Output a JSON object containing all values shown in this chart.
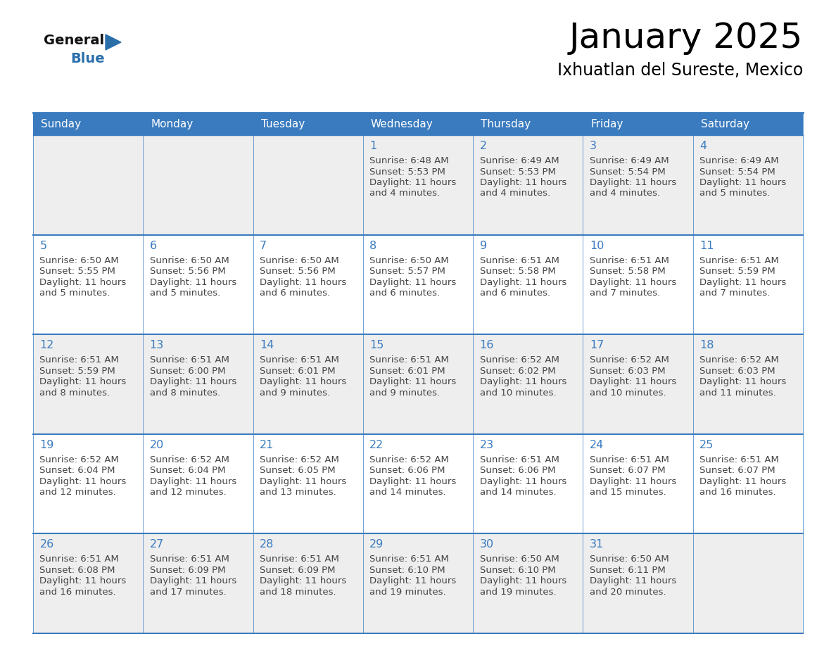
{
  "title": "January 2025",
  "subtitle": "Ixhuatlan del Sureste, Mexico",
  "days_of_week": [
    "Sunday",
    "Monday",
    "Tuesday",
    "Wednesday",
    "Thursday",
    "Friday",
    "Saturday"
  ],
  "header_bg": "#3a7bbf",
  "header_text": "#ffffff",
  "cell_bg_odd": "#eeeeee",
  "cell_bg_even": "#ffffff",
  "border_color": "#3a7bbf",
  "day_num_color": "#3a7bbf",
  "text_color": "#444444",
  "logo_general_color": "#111111",
  "logo_blue_color": "#2a6faa",
  "calendar": [
    [
      {
        "day": null,
        "sunrise": null,
        "sunset": null,
        "daylight": null
      },
      {
        "day": null,
        "sunrise": null,
        "sunset": null,
        "daylight": null
      },
      {
        "day": null,
        "sunrise": null,
        "sunset": null,
        "daylight": null
      },
      {
        "day": 1,
        "sunrise": "6:48 AM",
        "sunset": "5:53 PM",
        "daylight": "11 hours and 4 minutes."
      },
      {
        "day": 2,
        "sunrise": "6:49 AM",
        "sunset": "5:53 PM",
        "daylight": "11 hours and 4 minutes."
      },
      {
        "day": 3,
        "sunrise": "6:49 AM",
        "sunset": "5:54 PM",
        "daylight": "11 hours and 4 minutes."
      },
      {
        "day": 4,
        "sunrise": "6:49 AM",
        "sunset": "5:54 PM",
        "daylight": "11 hours and 5 minutes."
      }
    ],
    [
      {
        "day": 5,
        "sunrise": "6:50 AM",
        "sunset": "5:55 PM",
        "daylight": "11 hours and 5 minutes."
      },
      {
        "day": 6,
        "sunrise": "6:50 AM",
        "sunset": "5:56 PM",
        "daylight": "11 hours and 5 minutes."
      },
      {
        "day": 7,
        "sunrise": "6:50 AM",
        "sunset": "5:56 PM",
        "daylight": "11 hours and 6 minutes."
      },
      {
        "day": 8,
        "sunrise": "6:50 AM",
        "sunset": "5:57 PM",
        "daylight": "11 hours and 6 minutes."
      },
      {
        "day": 9,
        "sunrise": "6:51 AM",
        "sunset": "5:58 PM",
        "daylight": "11 hours and 6 minutes."
      },
      {
        "day": 10,
        "sunrise": "6:51 AM",
        "sunset": "5:58 PM",
        "daylight": "11 hours and 7 minutes."
      },
      {
        "day": 11,
        "sunrise": "6:51 AM",
        "sunset": "5:59 PM",
        "daylight": "11 hours and 7 minutes."
      }
    ],
    [
      {
        "day": 12,
        "sunrise": "6:51 AM",
        "sunset": "5:59 PM",
        "daylight": "11 hours and 8 minutes."
      },
      {
        "day": 13,
        "sunrise": "6:51 AM",
        "sunset": "6:00 PM",
        "daylight": "11 hours and 8 minutes."
      },
      {
        "day": 14,
        "sunrise": "6:51 AM",
        "sunset": "6:01 PM",
        "daylight": "11 hours and 9 minutes."
      },
      {
        "day": 15,
        "sunrise": "6:51 AM",
        "sunset": "6:01 PM",
        "daylight": "11 hours and 9 minutes."
      },
      {
        "day": 16,
        "sunrise": "6:52 AM",
        "sunset": "6:02 PM",
        "daylight": "11 hours and 10 minutes."
      },
      {
        "day": 17,
        "sunrise": "6:52 AM",
        "sunset": "6:03 PM",
        "daylight": "11 hours and 10 minutes."
      },
      {
        "day": 18,
        "sunrise": "6:52 AM",
        "sunset": "6:03 PM",
        "daylight": "11 hours and 11 minutes."
      }
    ],
    [
      {
        "day": 19,
        "sunrise": "6:52 AM",
        "sunset": "6:04 PM",
        "daylight": "11 hours and 12 minutes."
      },
      {
        "day": 20,
        "sunrise": "6:52 AM",
        "sunset": "6:04 PM",
        "daylight": "11 hours and 12 minutes."
      },
      {
        "day": 21,
        "sunrise": "6:52 AM",
        "sunset": "6:05 PM",
        "daylight": "11 hours and 13 minutes."
      },
      {
        "day": 22,
        "sunrise": "6:52 AM",
        "sunset": "6:06 PM",
        "daylight": "11 hours and 14 minutes."
      },
      {
        "day": 23,
        "sunrise": "6:51 AM",
        "sunset": "6:06 PM",
        "daylight": "11 hours and 14 minutes."
      },
      {
        "day": 24,
        "sunrise": "6:51 AM",
        "sunset": "6:07 PM",
        "daylight": "11 hours and 15 minutes."
      },
      {
        "day": 25,
        "sunrise": "6:51 AM",
        "sunset": "6:07 PM",
        "daylight": "11 hours and 16 minutes."
      }
    ],
    [
      {
        "day": 26,
        "sunrise": "6:51 AM",
        "sunset": "6:08 PM",
        "daylight": "11 hours and 16 minutes."
      },
      {
        "day": 27,
        "sunrise": "6:51 AM",
        "sunset": "6:09 PM",
        "daylight": "11 hours and 17 minutes."
      },
      {
        "day": 28,
        "sunrise": "6:51 AM",
        "sunset": "6:09 PM",
        "daylight": "11 hours and 18 minutes."
      },
      {
        "day": 29,
        "sunrise": "6:51 AM",
        "sunset": "6:10 PM",
        "daylight": "11 hours and 19 minutes."
      },
      {
        "day": 30,
        "sunrise": "6:50 AM",
        "sunset": "6:10 PM",
        "daylight": "11 hours and 19 minutes."
      },
      {
        "day": 31,
        "sunrise": "6:50 AM",
        "sunset": "6:11 PM",
        "daylight": "11 hours and 20 minutes."
      },
      {
        "day": null,
        "sunrise": null,
        "sunset": null,
        "daylight": null
      }
    ]
  ]
}
